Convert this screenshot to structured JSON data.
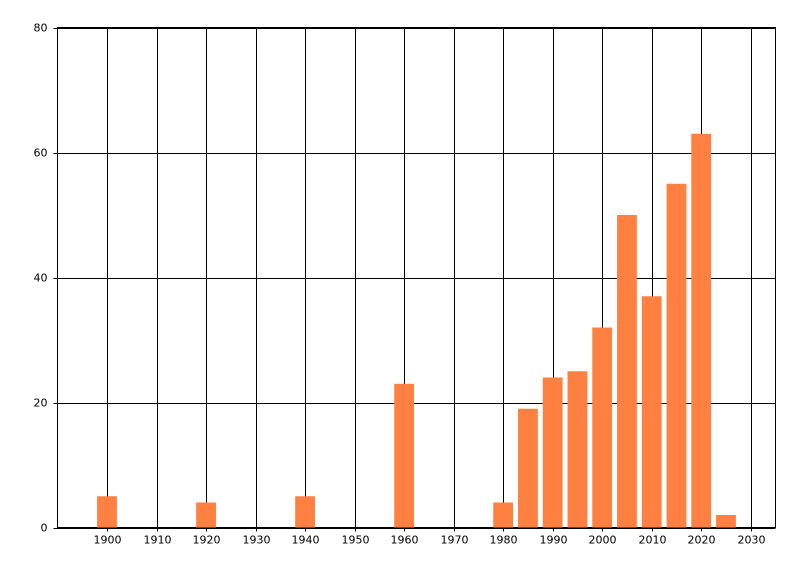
{
  "chart_data": {
    "type": "bar",
    "x": [
      1900,
      1920,
      1940,
      1960,
      1980,
      1985,
      1990,
      1995,
      2000,
      2005,
      2010,
      2015,
      2020,
      2025
    ],
    "values": [
      5,
      4,
      5,
      23,
      4,
      19,
      24,
      25,
      32,
      50,
      37,
      55,
      63,
      2
    ],
    "color": "#ff8040",
    "xlim": [
      1890,
      2035
    ],
    "xticks": [
      1900,
      1910,
      1920,
      1930,
      1940,
      1950,
      1960,
      1970,
      1980,
      1990,
      2000,
      2010,
      2020,
      2030
    ],
    "ylim": [
      0,
      80
    ],
    "yticks": [
      0,
      20,
      40,
      60,
      80
    ],
    "grid": true
  }
}
